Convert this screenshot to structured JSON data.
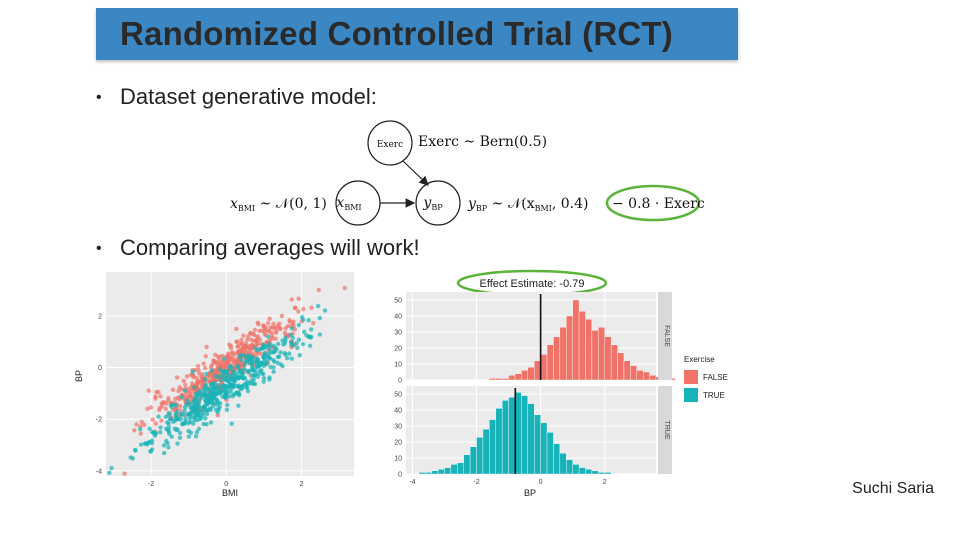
{
  "slide": {
    "title": "Randomized Controlled Trial (RCT)",
    "bullet1": "Dataset generative model:",
    "bullet2": "Comparing averages will work!",
    "author": "Suchi Saria",
    "accent_color": "#3b87c4",
    "highlight_color": "#5cb33c"
  },
  "diagram": {
    "node_exerc": "Exerc",
    "node_bmi": "x",
    "node_bmi_sub": "BMI",
    "node_bp": "y",
    "node_bp_sub": "BP",
    "eq_exerc": "Exerc ~ Bern(0.5)",
    "eq_bmi": "x",
    "eq_bmi_sub": "BMI",
    "eq_bmi_rest": " ~ 𝒩(0, 1)",
    "eq_bp": "y",
    "eq_bp_sub": "BP",
    "eq_bp_rest": " ~ 𝒩(x",
    "eq_bp_sub2": "BMI",
    "eq_bp_rest2": ", 0.4)",
    "eq_bp_highlight": "− 0.8 · Exerc"
  },
  "chart_data": [
    {
      "type": "scatter",
      "title": "",
      "xlabel": "BMI",
      "ylabel": "BP",
      "xlim": [
        -3.2,
        3.4
      ],
      "ylim": [
        -4.2,
        3.7
      ],
      "xticks": [
        "-2",
        "0",
        "2"
      ],
      "xtick_values": [
        -2,
        0,
        2
      ],
      "yticks": [
        "-4",
        "-2",
        "0",
        "2"
      ],
      "ytick_values": [
        -4,
        -2,
        0,
        2
      ],
      "series": [
        {
          "name": "FALSE",
          "color": "#f0736a",
          "relation": "y = x, noise sd 0.4",
          "n": 500,
          "seed": 7
        },
        {
          "name": "TRUE",
          "color": "#17b3b8",
          "relation": "y = x - 0.8, noise sd 0.4",
          "n": 500,
          "seed": 19
        }
      ]
    },
    {
      "type": "bar",
      "title": "Effect Estimate: -0.79",
      "xlabel": "BP",
      "ylabel": "",
      "xlim": [
        -4.2,
        3.6
      ],
      "xticks": [
        "-4",
        "-2",
        "0",
        "2"
      ],
      "xtick_values": [
        -4,
        -2,
        0,
        2
      ],
      "bin_start": -3.8,
      "bin_width": 0.2,
      "panels": [
        {
          "name": "FALSE",
          "color": "#f0736a",
          "ylim": [
            0,
            55
          ],
          "yticks": [
            "0",
            "10",
            "20",
            "30",
            "40",
            "50"
          ],
          "ytick_values": [
            0,
            10,
            20,
            30,
            40,
            50
          ],
          "mean": 0.0,
          "values": [
            0,
            0,
            0,
            0,
            0,
            0,
            0,
            0,
            0,
            0,
            0,
            1,
            1,
            1,
            3,
            4,
            6,
            8,
            12,
            16,
            22,
            27,
            33,
            40,
            50,
            43,
            38,
            31,
            33,
            27,
            22,
            17,
            12,
            9,
            6,
            5,
            3,
            2,
            1,
            1
          ]
        },
        {
          "name": "TRUE",
          "color": "#17b3b8",
          "ylim": [
            0,
            55
          ],
          "yticks": [
            "0",
            "10",
            "20",
            "30",
            "40",
            "50"
          ],
          "ytick_values": [
            0,
            10,
            20,
            30,
            40,
            50
          ],
          "mean": -0.79,
          "values": [
            1,
            1,
            2,
            3,
            4,
            6,
            7,
            12,
            17,
            23,
            28,
            34,
            41,
            46,
            48,
            51,
            49,
            44,
            37,
            32,
            26,
            19,
            13,
            9,
            6,
            4,
            3,
            2,
            1,
            1,
            0,
            0,
            0,
            0,
            0,
            0,
            0,
            0,
            0,
            0
          ]
        }
      ],
      "legend": {
        "title": "Exercise",
        "items": [
          "FALSE",
          "TRUE"
        ],
        "position": "right"
      }
    }
  ]
}
